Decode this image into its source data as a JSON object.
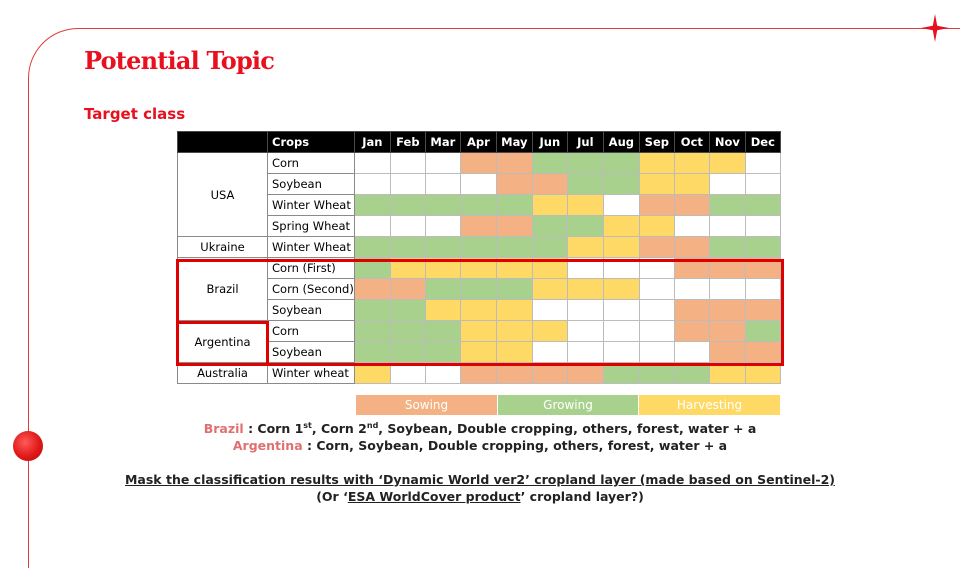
{
  "slide": {
    "title": "Potential Topic",
    "subtitle": "Target class"
  },
  "table": {
    "headers": [
      "",
      "Crops",
      "Jan",
      "Feb",
      "Mar",
      "Apr",
      "May",
      "Jun",
      "Jul",
      "Aug",
      "Sep",
      "Oct",
      "Nov",
      "Dec"
    ],
    "groups": [
      {
        "country": "USA",
        "rows": [
          {
            "crop": "Corn",
            "months": "WWWSSGGGHHHW"
          },
          {
            "crop": "Soybean",
            "months": "WWWWSSGGHHWW"
          },
          {
            "crop": "Winter Wheat",
            "months": "GGGGGHHWSSGG"
          },
          {
            "crop": "Spring Wheat",
            "months": "WWWSSGGHHWWW"
          }
        ]
      },
      {
        "country": "Ukraine",
        "rows": [
          {
            "crop": "Winter Wheat",
            "months": "GGGGGGHHSSGG"
          }
        ]
      },
      {
        "country": "Brazil",
        "rows": [
          {
            "crop": "Corn (First)",
            "months": "GHHHHHWWWSSS"
          },
          {
            "crop": "Corn (Second)",
            "months": "SSGGGHHHWWWW"
          },
          {
            "crop": "Soybean",
            "months": "GGHHHWWWWSSS"
          }
        ]
      },
      {
        "country": "Argentina",
        "rows": [
          {
            "crop": "Corn",
            "months": "GGGHHHWWWSSG"
          },
          {
            "crop": "Soybean",
            "months": "GGGHHWWWWWSS"
          }
        ]
      },
      {
        "country": "Australia",
        "rows": [
          {
            "crop": "Winter wheat",
            "months": "HWWSSSSGGGHH"
          }
        ]
      }
    ]
  },
  "legend": [
    {
      "label": "Sowing",
      "color": "#f4b183"
    },
    {
      "label": "Growing",
      "color": "#a9d18e"
    },
    {
      "label": "Harvesting",
      "color": "#ffd966"
    }
  ],
  "notes": {
    "brazil_country": "Brazil",
    "brazil_a": " : Corn 1",
    "brazil_sup1": "st",
    "brazil_b": ", Corn 2",
    "brazil_sup2": "nd",
    "brazil_c": ", Soybean, Double cropping, others, forest, water + a",
    "argentina_country": "Argentina",
    "argentina_text": " : Corn, Soybean, Double cropping, others, forest, water + a",
    "mask_line": "Mask the classification results with ‘Dynamic World ver2’ cropland layer (made based on Sentinel-2)",
    "or_a": "(Or ‘",
    "or_link": "ESA WorldCover product",
    "or_b": "’ cropland layer?)"
  }
}
